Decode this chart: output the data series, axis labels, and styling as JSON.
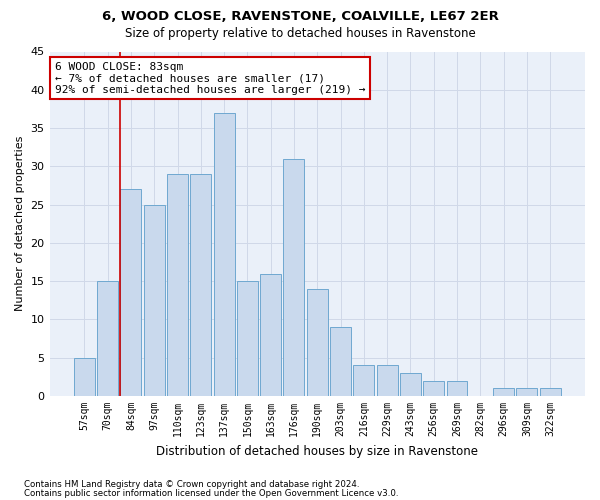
{
  "title1": "6, WOOD CLOSE, RAVENSTONE, COALVILLE, LE67 2ER",
  "title2": "Size of property relative to detached houses in Ravenstone",
  "xlabel": "Distribution of detached houses by size in Ravenstone",
  "ylabel": "Number of detached properties",
  "categories": [
    "57sqm",
    "70sqm",
    "84sqm",
    "97sqm",
    "110sqm",
    "123sqm",
    "137sqm",
    "150sqm",
    "163sqm",
    "176sqm",
    "190sqm",
    "203sqm",
    "216sqm",
    "229sqm",
    "243sqm",
    "256sqm",
    "269sqm",
    "282sqm",
    "296sqm",
    "309sqm",
    "322sqm"
  ],
  "values": [
    5,
    15,
    27,
    25,
    29,
    29,
    37,
    15,
    16,
    31,
    14,
    9,
    4,
    4,
    3,
    2,
    2,
    0,
    1,
    1,
    1
  ],
  "bar_color": "#c9d9ed",
  "bar_edge_color": "#6fa8d0",
  "grid_color": "#d0d8e8",
  "background_color": "#eaf0f9",
  "vline_x_index": 2,
  "vline_color": "#cc0000",
  "annotation_text": "6 WOOD CLOSE: 83sqm\n← 7% of detached houses are smaller (17)\n92% of semi-detached houses are larger (219) →",
  "annotation_box_color": "#ffffff",
  "annotation_box_edge_color": "#cc0000",
  "ylim": [
    0,
    45
  ],
  "yticks": [
    0,
    5,
    10,
    15,
    20,
    25,
    30,
    35,
    40,
    45
  ],
  "footnote1": "Contains HM Land Registry data © Crown copyright and database right 2024.",
  "footnote2": "Contains public sector information licensed under the Open Government Licence v3.0."
}
